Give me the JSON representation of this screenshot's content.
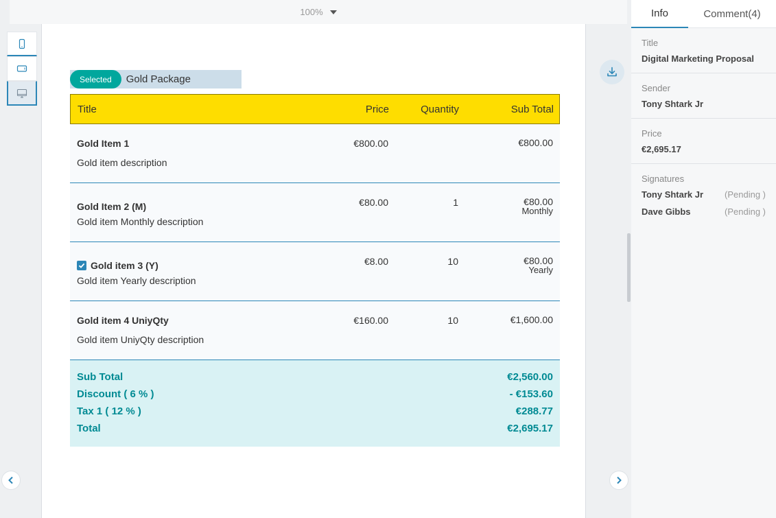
{
  "toolbar": {
    "zoom": "100%"
  },
  "devices": [
    "mobile",
    "tablet",
    "desktop"
  ],
  "package": {
    "badge": "Selected",
    "name": "Gold Package"
  },
  "table": {
    "headers": {
      "title": "Title",
      "price": "Price",
      "quantity": "Quantity",
      "subtotal": "Sub Total"
    },
    "rows": [
      {
        "name": "Gold Item 1",
        "description": "Gold item description",
        "price": "€800.00",
        "quantity": "",
        "subtotal": "€800.00",
        "frequency": "",
        "checked": false
      },
      {
        "name": "Gold Item 2 (M)",
        "description": "Gold item Monthly description",
        "price": "€80.00",
        "quantity": "1",
        "subtotal": "€80.00",
        "frequency": "Monthly",
        "checked": false
      },
      {
        "name": "Gold item 3 (Y)",
        "description": "Gold item Yearly description",
        "price": "€8.00",
        "quantity": "10",
        "subtotal": "€80.00",
        "frequency": "Yearly",
        "checked": true
      },
      {
        "name": "Gold item 4 UniyQty",
        "description": "Gold item UniyQty description",
        "price": "€160.00",
        "quantity": "10",
        "subtotal": "€1,600.00",
        "frequency": "",
        "checked": false
      }
    ],
    "totals": [
      {
        "label": "Sub Total",
        "value": "€2,560.00"
      },
      {
        "label": "Discount ( 6 % )",
        "value": "- €153.60"
      },
      {
        "label": "Tax 1 ( 12 % )",
        "value": "€288.77"
      },
      {
        "label": "Total",
        "value": "€2,695.17"
      }
    ]
  },
  "panel": {
    "tabs": {
      "info": "Info",
      "comment": "Comment(4)"
    },
    "title_label": "Title",
    "title_value": "Digital Marketing Proposal",
    "sender_label": "Sender",
    "sender_value": "Tony Shtark Jr",
    "price_label": "Price",
    "price_value": "€2,695.17",
    "signatures_label": "Signatures",
    "signatures": [
      {
        "name": "Tony Shtark Jr",
        "status": "(Pending )"
      },
      {
        "name": "Dave Gibbs",
        "status": "(Pending )"
      }
    ]
  },
  "colors": {
    "accent": "#2b86b7",
    "header_yellow": "#fedd00",
    "teal": "#00a79d",
    "totals_bg": "#d9f2f4"
  }
}
